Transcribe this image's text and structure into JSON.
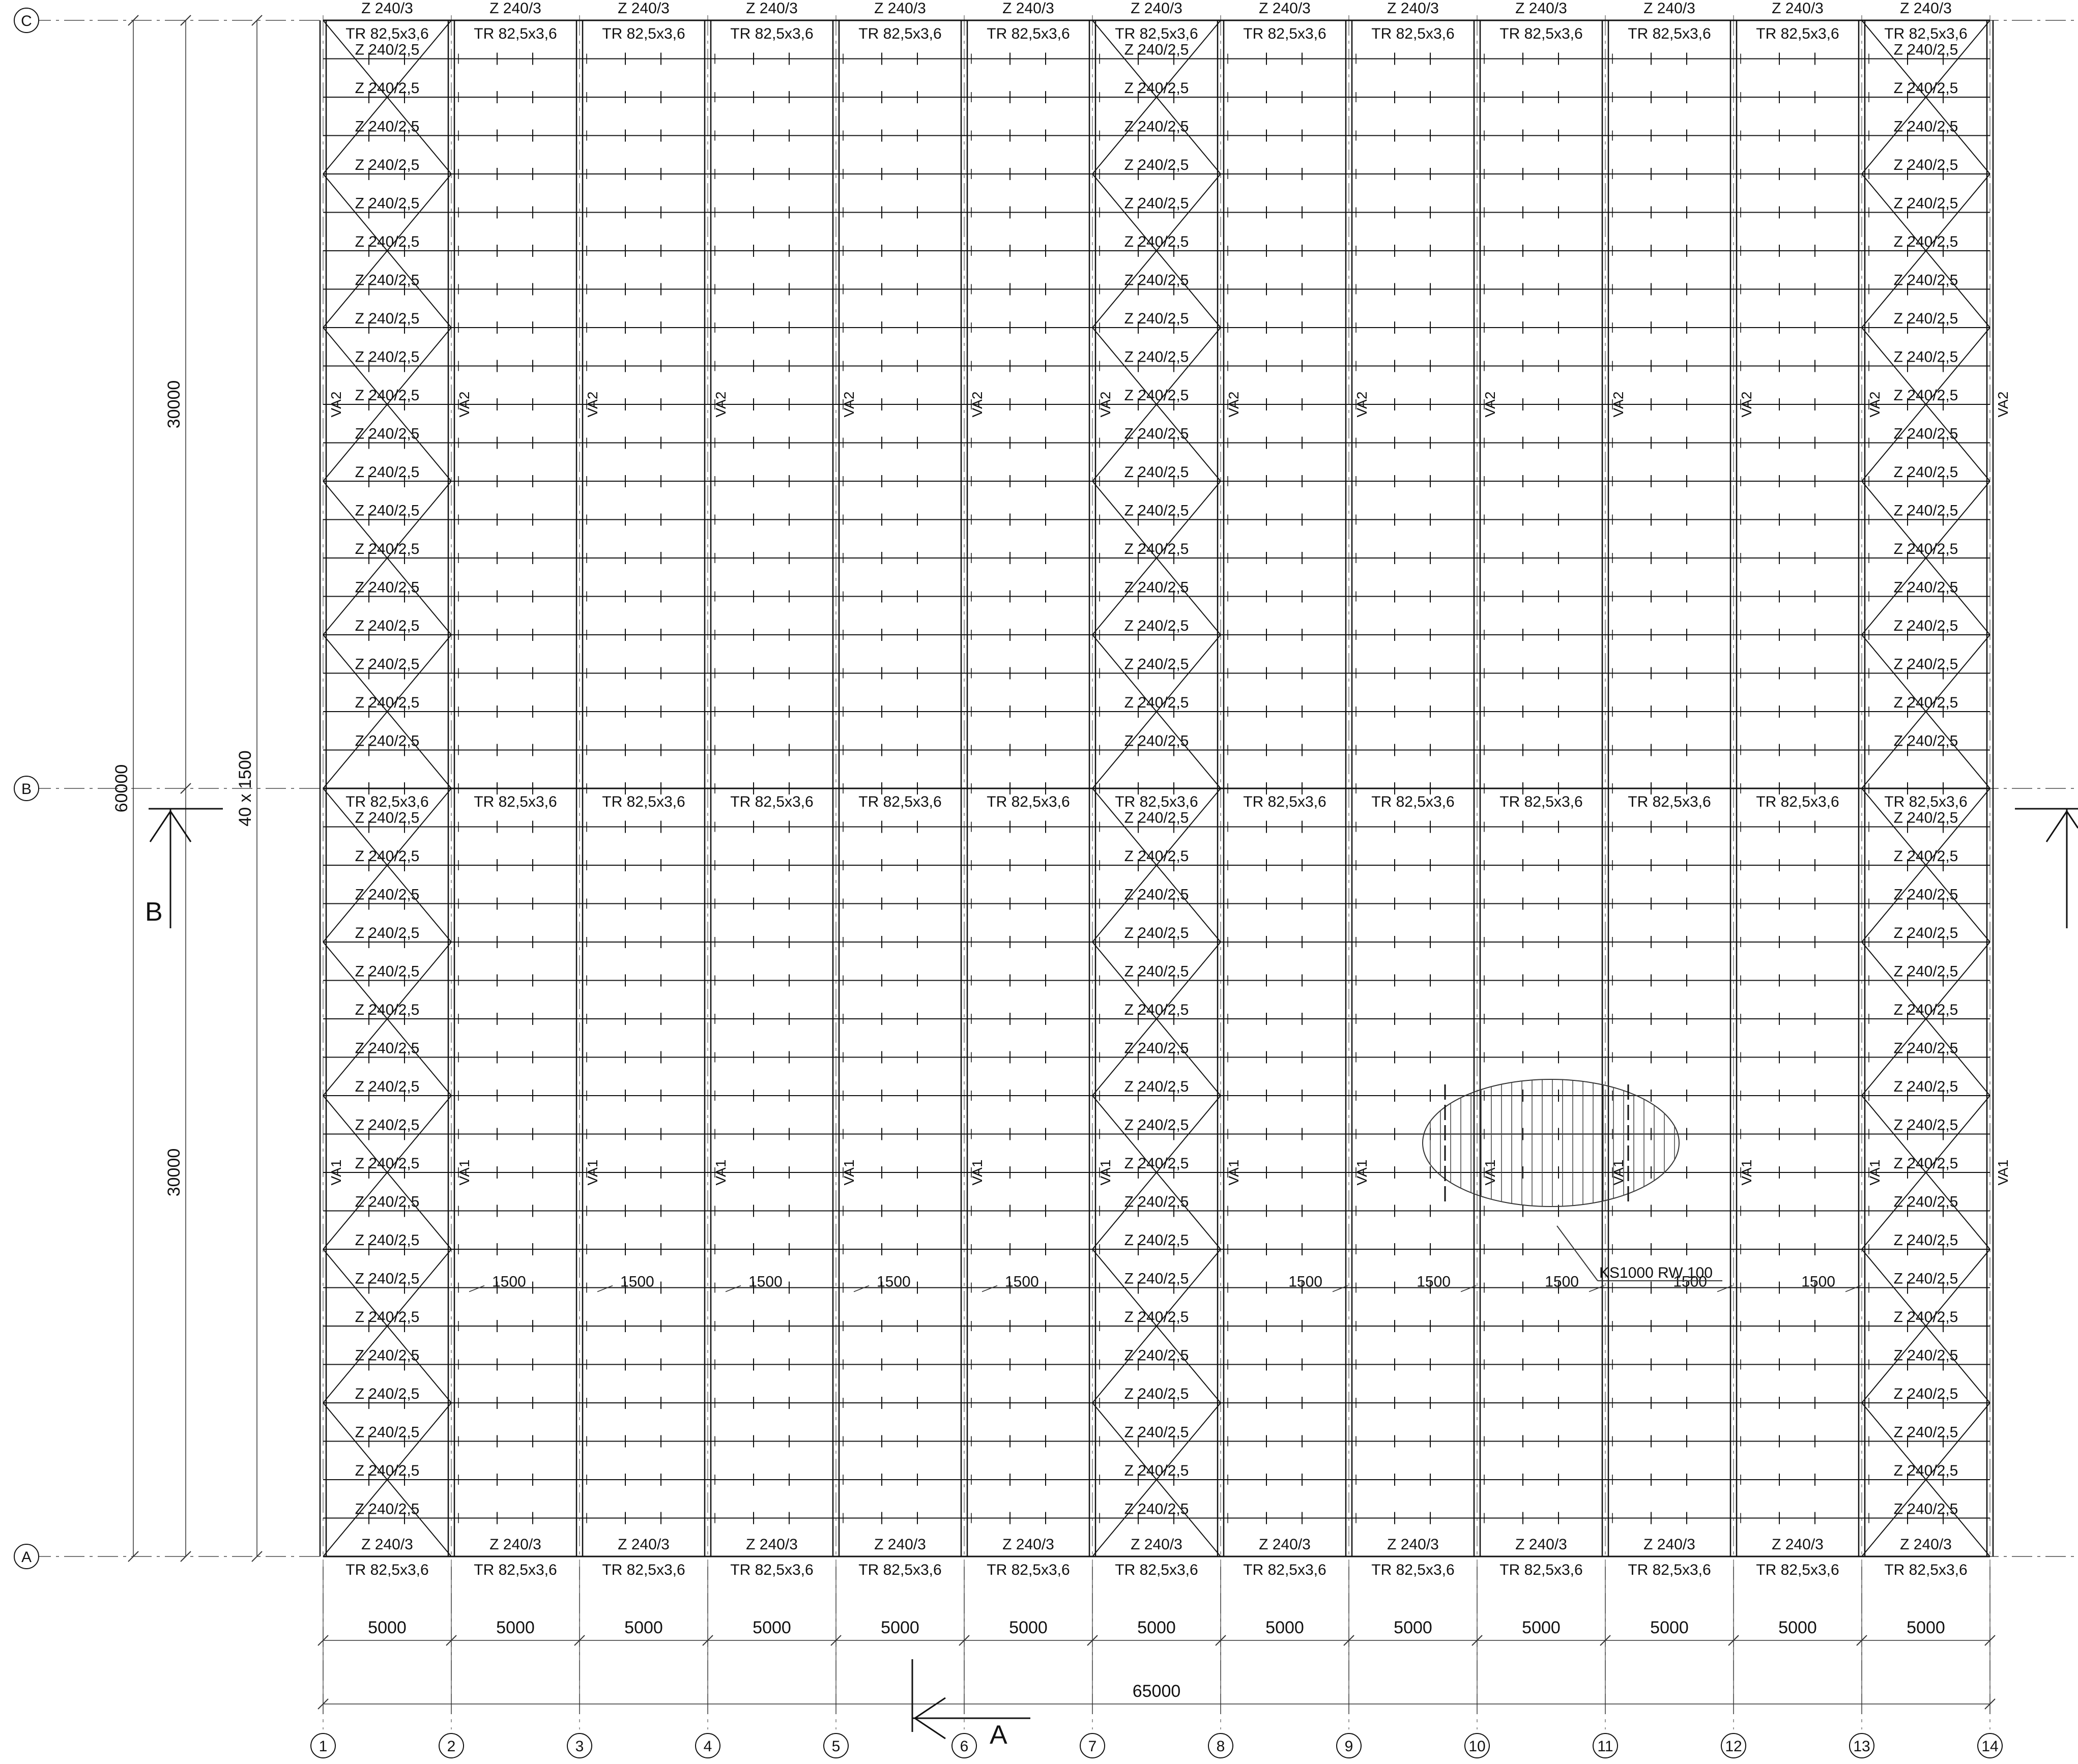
{
  "axes": {
    "rows": [
      "A",
      "B",
      "C"
    ],
    "columns": [
      "1",
      "2",
      "3",
      "4",
      "5",
      "6",
      "7",
      "8",
      "9",
      "10",
      "11",
      "12",
      "13",
      "14"
    ]
  },
  "labels": {
    "truss": "TR 82,5x3,6",
    "purlin_edge": "Z 240/3",
    "purlin": "Z 240/2,5",
    "bracing_upper": "VA2",
    "bracing_lower": "VA1",
    "panel_callout": "KS1000 RW 100",
    "purlin_spacing": "1500"
  },
  "dimensions": {
    "bay": "5000",
    "total_length": "65000",
    "total_width": "60000",
    "half_width": "30000",
    "purlin_count": "40 x 1500"
  },
  "sections": {
    "a": "A",
    "b": "B"
  },
  "colors": {
    "line": "#111111",
    "axis": "#777777",
    "dim": "#333333"
  },
  "icons": {
    "axis_bubble": "axis-bubble-icon",
    "section_arrow": "section-arrow-icon"
  }
}
